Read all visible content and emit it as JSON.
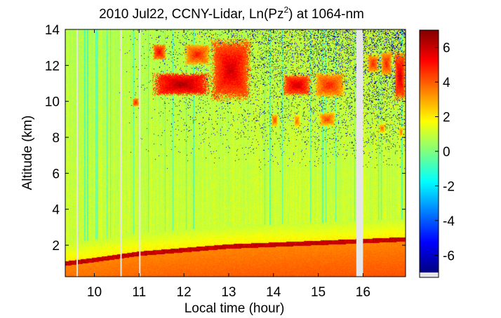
{
  "chart_data": {
    "type": "heatmap",
    "title": {
      "prefix": "2010 Jul22, CCNY-Lidar, Ln(Pz",
      "superscript": "2",
      "suffix": ") at 1064-nm"
    },
    "xlabel": "Local time (hour)",
    "ylabel": "Altitude (km)",
    "xlim": [
      9.35,
      16.95
    ],
    "ylim": [
      0.25,
      14
    ],
    "xticks": [
      10,
      11,
      12,
      13,
      14,
      15,
      16
    ],
    "yticks": [
      2,
      4,
      6,
      8,
      10,
      12,
      14
    ],
    "colorbar": {
      "range": [
        -7,
        7
      ],
      "ticks": [
        6,
        4,
        2,
        0,
        -2,
        -4,
        -6
      ],
      "colormap": "jet"
    },
    "data_gaps": [
      [
        9.6,
        9.62
      ],
      [
        10.58,
        10.6
      ],
      [
        11.0,
        11.02
      ],
      [
        15.85,
        16.0
      ]
    ],
    "features": {
      "boundary_layer_top_km": [
        {
          "time": 9.35,
          "height": 1.0
        },
        {
          "time": 10.0,
          "height": 1.2
        },
        {
          "time": 11.0,
          "height": 1.55
        },
        {
          "time": 12.0,
          "height": 1.75
        },
        {
          "time": 13.0,
          "height": 1.95
        },
        {
          "time": 14.0,
          "height": 2.05
        },
        {
          "time": 15.0,
          "height": 2.15
        },
        {
          "time": 16.0,
          "height": 2.25
        },
        {
          "time": 16.95,
          "height": 2.35
        }
      ],
      "cloud_layers": [
        {
          "t0": 11.3,
          "t1": 12.6,
          "z0": 10.3,
          "z1": 11.6,
          "value": 6.5
        },
        {
          "t0": 11.3,
          "t1": 11.6,
          "z0": 12.3,
          "z1": 13.2,
          "value": 5.5
        },
        {
          "t0": 12.0,
          "t1": 12.6,
          "z0": 12.0,
          "z1": 13.2,
          "value": 5.0
        },
        {
          "t0": 12.6,
          "t1": 13.5,
          "z0": 10.0,
          "z1": 13.5,
          "value": 6.0
        },
        {
          "t0": 10.85,
          "t1": 11.0,
          "z0": 9.7,
          "z1": 10.2,
          "value": 5.0
        },
        {
          "t0": 14.2,
          "t1": 14.85,
          "z0": 10.3,
          "z1": 11.5,
          "value": 6.0
        },
        {
          "t0": 14.9,
          "t1": 15.6,
          "z0": 10.2,
          "z1": 11.6,
          "value": 5.0
        },
        {
          "t0": 14.45,
          "t1": 14.6,
          "z0": 8.5,
          "z1": 9.3,
          "value": 4.0
        },
        {
          "t0": 13.95,
          "t1": 14.1,
          "z0": 8.6,
          "z1": 9.3,
          "value": 4.5
        },
        {
          "t0": 15.0,
          "t1": 15.4,
          "z0": 8.6,
          "z1": 9.4,
          "value": 4.5
        },
        {
          "t0": 16.1,
          "t1": 16.35,
          "z0": 11.6,
          "z1": 12.6,
          "value": 5.0
        },
        {
          "t0": 16.4,
          "t1": 16.65,
          "z0": 11.4,
          "z1": 12.8,
          "value": 5.0
        },
        {
          "t0": 16.7,
          "t1": 16.95,
          "z0": 10.0,
          "z1": 12.8,
          "value": 6.0
        },
        {
          "t0": 16.35,
          "t1": 16.5,
          "z0": 8.2,
          "z1": 8.8,
          "value": 4.0
        },
        {
          "t0": 16.8,
          "t1": 16.9,
          "z0": 8.0,
          "z1": 8.6,
          "value": 4.0
        }
      ]
    }
  }
}
